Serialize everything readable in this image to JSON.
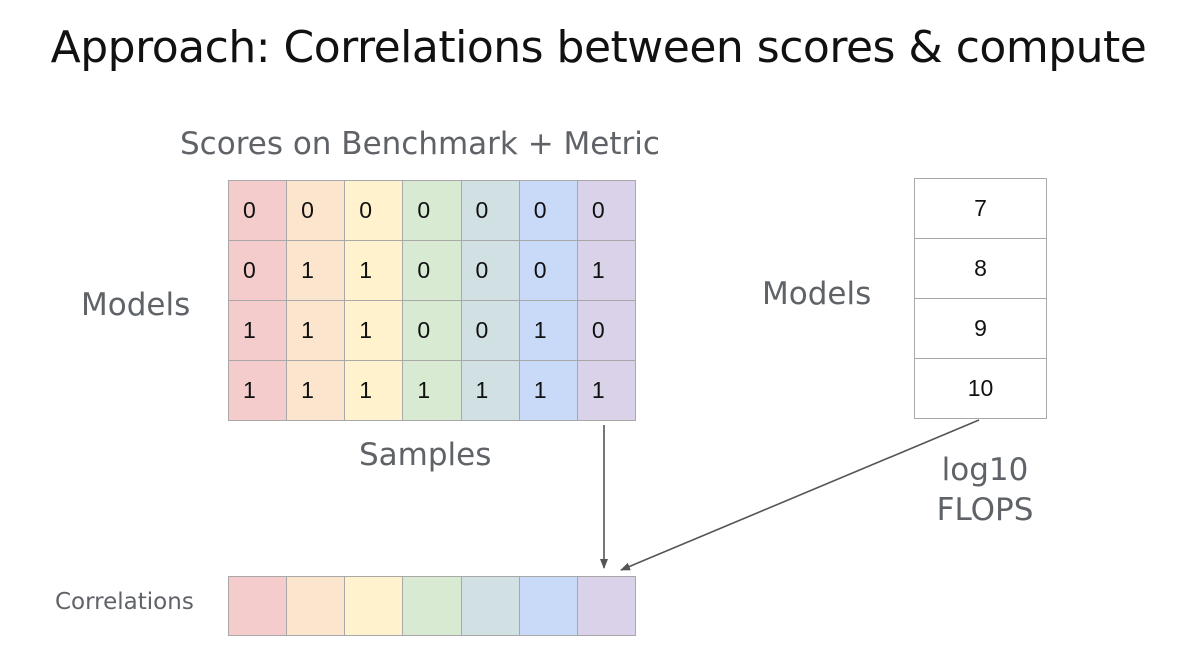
{
  "title": "Approach: Correlations between scores & compute",
  "scores_label": "Scores on Benchmark + Metric",
  "models_label_left": "Models",
  "samples_label": "Samples",
  "models_label_right": "Models",
  "flops_label_line1": "log10",
  "flops_label_line2": "FLOPS",
  "correlations_label": "Correlations",
  "column_colors": [
    "#f4cccc",
    "#fce5cd",
    "#fff2cc",
    "#d9ead3",
    "#d0e0e3",
    "#c9daf8",
    "#d9d2e9"
  ],
  "scores": [
    [
      "0",
      "0",
      "0",
      "0",
      "0",
      "0",
      "0"
    ],
    [
      "0",
      "1",
      "1",
      "0",
      "0",
      "0",
      "1"
    ],
    [
      "1",
      "1",
      "1",
      "0",
      "0",
      "1",
      "0"
    ],
    [
      "1",
      "1",
      "1",
      "1",
      "1",
      "1",
      "1"
    ]
  ],
  "flops": [
    "7",
    "8",
    "9",
    "10"
  ]
}
